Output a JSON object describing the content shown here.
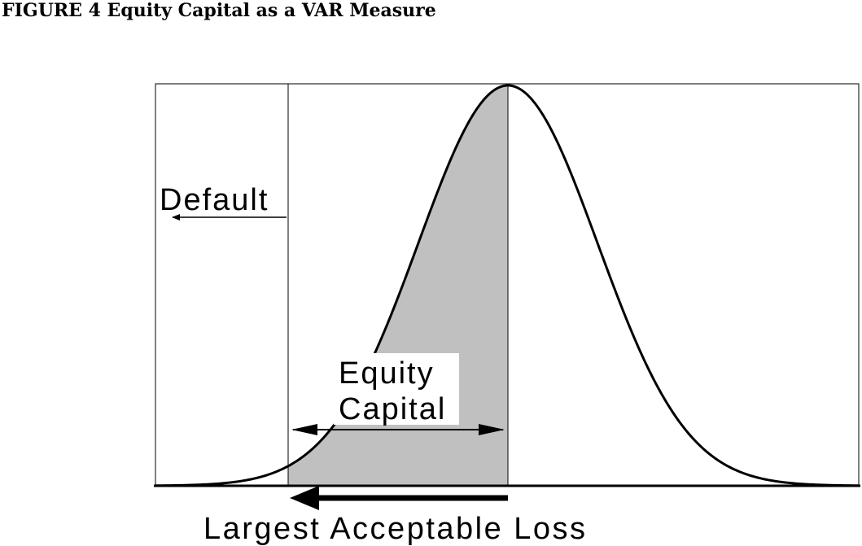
{
  "figure": {
    "title": "FIGURE 4 Equity Capital as a VAR Measure"
  },
  "labels": {
    "default": "Default",
    "equity_line1": "Equity",
    "equity_line2": "Capital",
    "largest_loss": "Largest Acceptable Loss"
  },
  "colors": {
    "shaded_region": "#c0c0c0",
    "line": "#000000",
    "background": "#ffffff"
  }
}
